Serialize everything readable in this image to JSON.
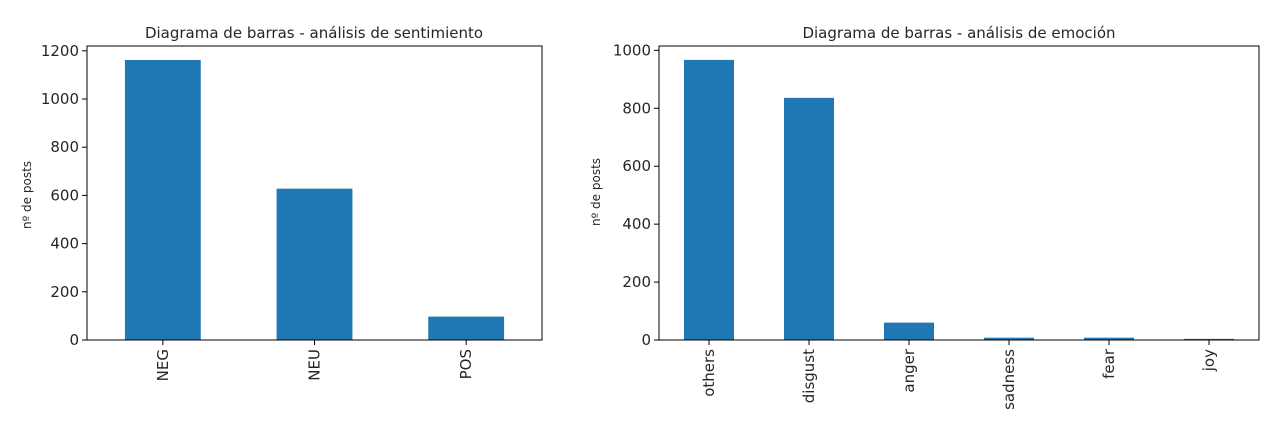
{
  "chart_data": [
    {
      "type": "bar",
      "title": "Diagrama de barras - análisis de sentimiento",
      "xlabel": "",
      "ylabel": "nº de posts",
      "categories": [
        "NEG",
        "NEU",
        "POS"
      ],
      "values": [
        1162,
        628,
        97
      ],
      "ylim": [
        0,
        1220
      ],
      "yticks": [
        "0",
        "200",
        "400",
        "600",
        "800",
        "1000",
        "1200"
      ],
      "color": "#1f77b4",
      "grid": false,
      "legend": "none"
    },
    {
      "type": "bar",
      "title": "Diagrama de barras - análisis de emoción",
      "xlabel": "",
      "ylabel": "nº de posts",
      "categories": [
        "others",
        "disgust",
        "anger",
        "sadness",
        "fear",
        "joy"
      ],
      "values": [
        967,
        836,
        60,
        8,
        8,
        4
      ],
      "ylim": [
        0,
        1015
      ],
      "yticks": [
        "0",
        "200",
        "400",
        "600",
        "800",
        "1000"
      ],
      "color": "#1f77b4",
      "grid": false,
      "legend": "none"
    }
  ]
}
